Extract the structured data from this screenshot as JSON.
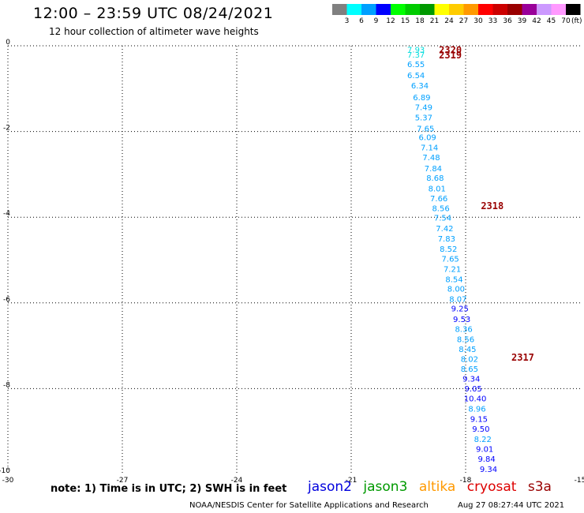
{
  "header": {
    "title": "12:00 – 23:59 UTC 08/24/2021",
    "subtitle": "12 hour collection of altimeter wave heights"
  },
  "color_scale": {
    "labels": [
      "3",
      "6",
      "9",
      "12",
      "15",
      "18",
      "21",
      "24",
      "27",
      "30",
      "33",
      "36",
      "39",
      "42",
      "45",
      "70"
    ],
    "unit": "(ft)",
    "colors": [
      "#808080",
      "#00ffff",
      "#00a0ff",
      "#0000ff",
      "#00ff00",
      "#00cc00",
      "#009900",
      "#ffff00",
      "#ffcc00",
      "#ff9900",
      "#ff0000",
      "#cc0000",
      "#990000",
      "#990099",
      "#cc99ff",
      "#ff99ff",
      "#000000"
    ]
  },
  "footer": {
    "note": "note:  1) Time is in UTC;  2) SWH is in feet",
    "credit": "NOAA/NESDIS Center for Satellite Applications and Research",
    "timestamp": "Aug 27 08:27:44 UTC 2021"
  },
  "satellites": [
    {
      "name": "jason2",
      "color": "#0000dd"
    },
    {
      "name": "jason3",
      "color": "#009900"
    },
    {
      "name": "altika",
      "color": "#ff9900"
    },
    {
      "name": "cryosat",
      "color": "#dd0000"
    },
    {
      "name": "s3a",
      "color": "#990000"
    }
  ],
  "chart_data": {
    "type": "scatter",
    "xlim": [
      -30,
      -15
    ],
    "ylim": [
      -10,
      0
    ],
    "x_ticks": [
      -30,
      -27,
      -24,
      -21,
      -18,
      -15
    ],
    "y_ticks": [
      0,
      -2,
      -4,
      -6,
      -8,
      -10
    ],
    "grid": true,
    "time_labels": [
      {
        "text": "2320",
        "x": -18.7,
        "y": -0.08
      },
      {
        "text": "2319",
        "x": -18.7,
        "y": -0.2
      },
      {
        "text": "2318",
        "x": -17.6,
        "y": -3.72
      },
      {
        "text": "2317",
        "x": -16.8,
        "y": -7.26
      }
    ],
    "points": [
      {
        "text": "7.93",
        "x": -19.3,
        "y": -0.08,
        "color": "#00dddd"
      },
      {
        "text": "7.37",
        "x": -19.3,
        "y": -0.2,
        "color": "#00dddd"
      },
      {
        "text": "6.55",
        "x": -19.3,
        "y": -0.42,
        "color": "#00a0ff"
      },
      {
        "text": "6.54",
        "x": -19.3,
        "y": -0.68,
        "color": "#00a0ff"
      },
      {
        "text": "6.34",
        "x": -19.2,
        "y": -0.92,
        "color": "#00a0ff"
      },
      {
        "text": "6.89",
        "x": -19.15,
        "y": -1.2,
        "color": "#00a0ff"
      },
      {
        "text": "7.49",
        "x": -19.1,
        "y": -1.43,
        "color": "#00a0ff"
      },
      {
        "text": "5.37",
        "x": -19.1,
        "y": -1.67,
        "color": "#00a0ff"
      },
      {
        "text": "7.65",
        "x": -19.05,
        "y": -1.92,
        "color": "#00a0ff"
      },
      {
        "text": "6.09",
        "x": -19.0,
        "y": -2.13,
        "color": "#00a0ff"
      },
      {
        "text": "7.14",
        "x": -18.95,
        "y": -2.37,
        "color": "#00a0ff"
      },
      {
        "text": "7.48",
        "x": -18.9,
        "y": -2.6,
        "color": "#00a0ff"
      },
      {
        "text": "7.84",
        "x": -18.85,
        "y": -2.85,
        "color": "#00a0ff"
      },
      {
        "text": "8.68",
        "x": -18.8,
        "y": -3.08,
        "color": "#00a0ff"
      },
      {
        "text": "8.01",
        "x": -18.75,
        "y": -3.32,
        "color": "#00a0ff"
      },
      {
        "text": "7.66",
        "x": -18.7,
        "y": -3.55,
        "color": "#00a0ff"
      },
      {
        "text": "8.56",
        "x": -18.65,
        "y": -3.78,
        "color": "#00a0ff"
      },
      {
        "text": "7.54",
        "x": -18.6,
        "y": -4.01,
        "color": "#00a0ff"
      },
      {
        "text": "7.42",
        "x": -18.55,
        "y": -4.25,
        "color": "#00a0ff"
      },
      {
        "text": "7.83",
        "x": -18.5,
        "y": -4.49,
        "color": "#00a0ff"
      },
      {
        "text": "8.52",
        "x": -18.45,
        "y": -4.73,
        "color": "#00a0ff"
      },
      {
        "text": "7.65",
        "x": -18.4,
        "y": -4.96,
        "color": "#00a0ff"
      },
      {
        "text": "7.21",
        "x": -18.35,
        "y": -5.2,
        "color": "#00a0ff"
      },
      {
        "text": "8.54",
        "x": -18.3,
        "y": -5.44,
        "color": "#00a0ff"
      },
      {
        "text": "8.00",
        "x": -18.25,
        "y": -5.66,
        "color": "#00a0ff"
      },
      {
        "text": "8.07",
        "x": -18.2,
        "y": -5.9,
        "color": "#00a0ff"
      },
      {
        "text": "9.25",
        "x": -18.15,
        "y": -6.12,
        "color": "#0000ff"
      },
      {
        "text": "9.53",
        "x": -18.1,
        "y": -6.37,
        "color": "#0000ff"
      },
      {
        "text": "8.36",
        "x": -18.05,
        "y": -6.6,
        "color": "#00a0ff"
      },
      {
        "text": "8.56",
        "x": -18.0,
        "y": -6.84,
        "color": "#00a0ff"
      },
      {
        "text": "8.45",
        "x": -17.95,
        "y": -7.07,
        "color": "#00a0ff"
      },
      {
        "text": "8.02",
        "x": -17.9,
        "y": -7.3,
        "color": "#00a0ff"
      },
      {
        "text": "8.65",
        "x": -17.9,
        "y": -7.53,
        "color": "#00a0ff"
      },
      {
        "text": "9.34",
        "x": -17.85,
        "y": -7.76,
        "color": "#0000ff"
      },
      {
        "text": "9.05",
        "x": -17.8,
        "y": -7.99,
        "color": "#0000ff"
      },
      {
        "text": "10.40",
        "x": -17.75,
        "y": -8.22,
        "color": "#0000ff"
      },
      {
        "text": "8.96",
        "x": -17.7,
        "y": -8.46,
        "color": "#00a0ff"
      },
      {
        "text": "9.15",
        "x": -17.65,
        "y": -8.7,
        "color": "#0000ff"
      },
      {
        "text": "9.50",
        "x": -17.6,
        "y": -8.93,
        "color": "#0000ff"
      },
      {
        "text": "8.22",
        "x": -17.55,
        "y": -9.17,
        "color": "#00a0ff"
      },
      {
        "text": "9.01",
        "x": -17.5,
        "y": -9.4,
        "color": "#0000ff"
      },
      {
        "text": "9.84",
        "x": -17.45,
        "y": -9.63,
        "color": "#0000ff"
      },
      {
        "text": "9.34",
        "x": -17.4,
        "y": -9.87,
        "color": "#0000ff"
      }
    ]
  }
}
